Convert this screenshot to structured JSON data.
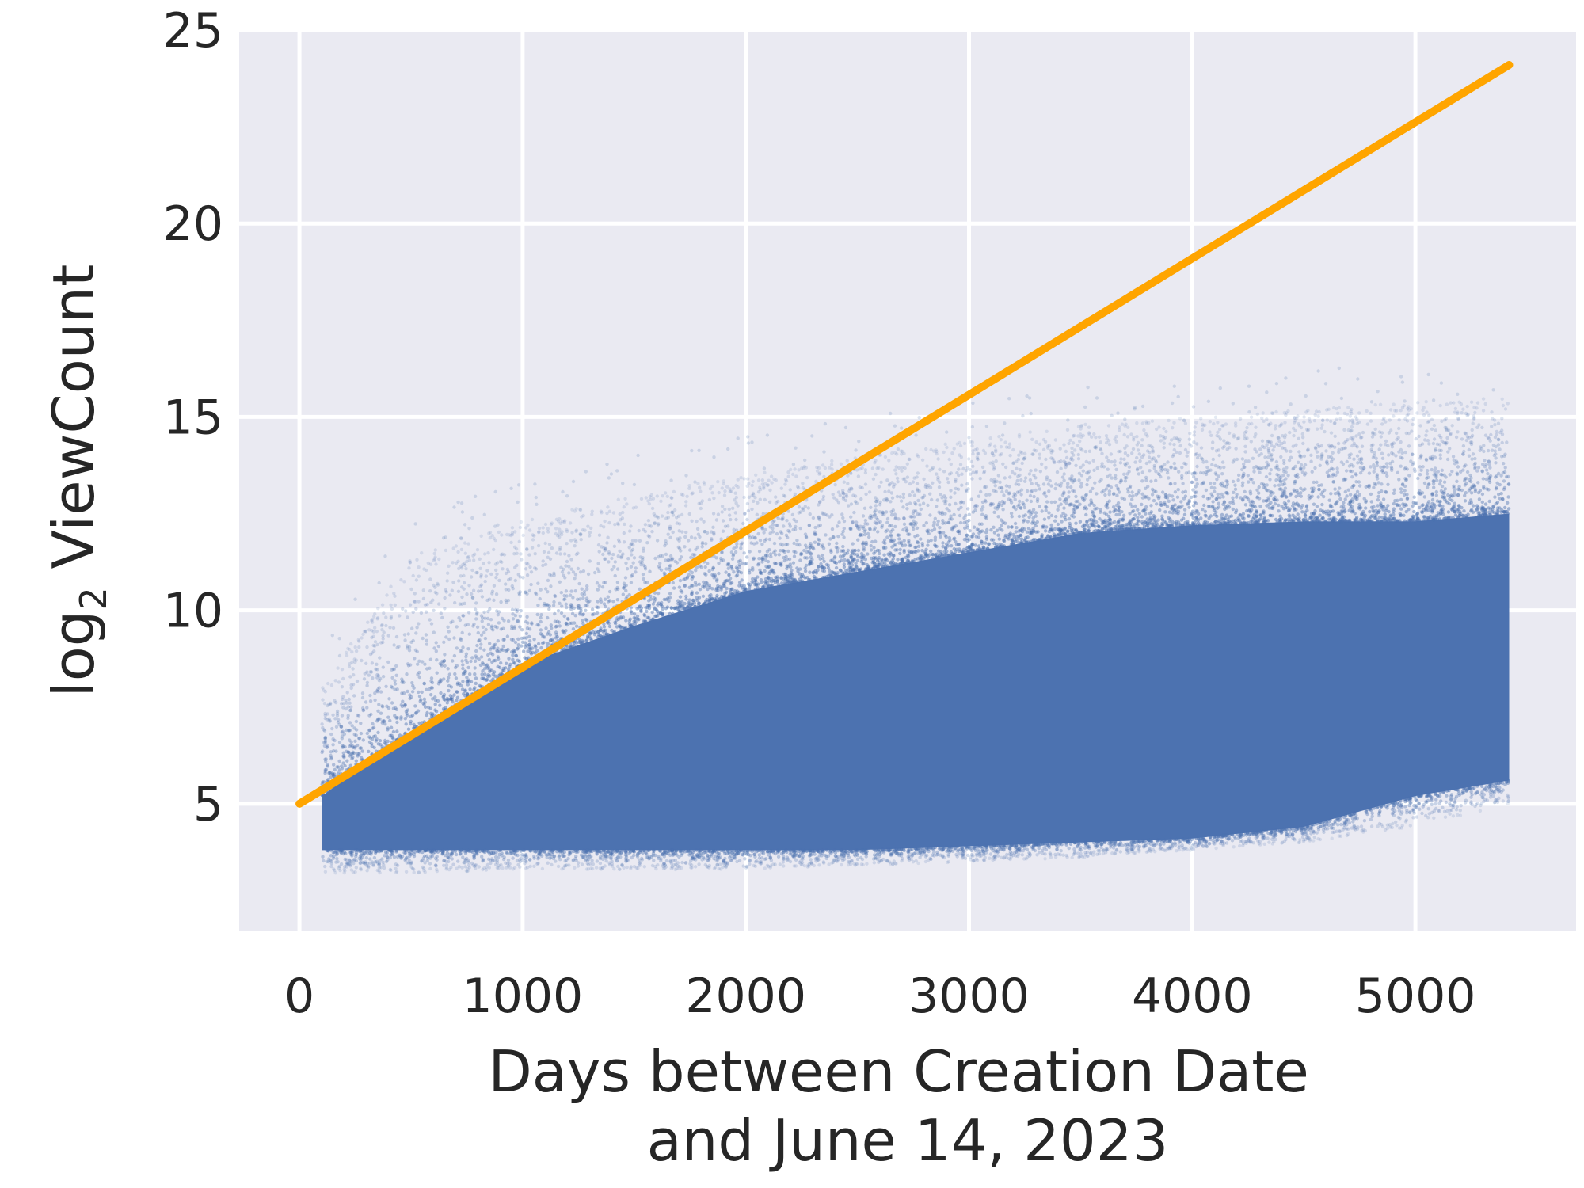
{
  "chart_data": {
    "type": "scatter",
    "xlabel_lines": [
      "Days between Creation Date",
      "and June 14, 2023"
    ],
    "ylabel": {
      "base": "log",
      "sub": "2",
      "rest": " ViewCount"
    },
    "xlim": [
      -270,
      5720
    ],
    "ylim": [
      1.7,
      25
    ],
    "x_ticks": [
      0,
      1000,
      2000,
      3000,
      4000,
      5000
    ],
    "y_ticks": [
      5,
      10,
      15,
      20,
      25
    ],
    "x_tick_labels": [
      "0",
      "1000",
      "2000",
      "3000",
      "4000",
      "5000"
    ],
    "y_tick_labels": [
      "5",
      "10",
      "15",
      "20",
      "25"
    ],
    "grid": true,
    "background": "#eaeaf2",
    "series": [
      {
        "kind": "scatter-cloud",
        "color": "#4c72b0",
        "x_range": [
          100,
          5420
        ],
        "dense_band": [
          {
            "x": 100,
            "low": 3.8,
            "high": 5.2
          },
          {
            "x": 500,
            "low": 3.8,
            "high": 6.8
          },
          {
            "x": 1000,
            "low": 3.8,
            "high": 8.6
          },
          {
            "x": 1500,
            "low": 3.8,
            "high": 9.6
          },
          {
            "x": 2000,
            "low": 3.8,
            "high": 10.5
          },
          {
            "x": 2500,
            "low": 3.8,
            "high": 11.0
          },
          {
            "x": 3000,
            "low": 3.9,
            "high": 11.5
          },
          {
            "x": 3500,
            "low": 4.0,
            "high": 12.0
          },
          {
            "x": 4000,
            "low": 4.1,
            "high": 12.2
          },
          {
            "x": 4500,
            "low": 4.4,
            "high": 12.3
          },
          {
            "x": 5000,
            "low": 5.2,
            "high": 12.3
          },
          {
            "x": 5420,
            "low": 5.6,
            "high": 12.5
          }
        ],
        "outer_band": [
          {
            "x": 100,
            "low": 3.2,
            "high": 8.0
          },
          {
            "x": 500,
            "low": 3.2,
            "high": 11.5
          },
          {
            "x": 1000,
            "low": 3.3,
            "high": 12.3
          },
          {
            "x": 1500,
            "low": 3.3,
            "high": 13.0
          },
          {
            "x": 2000,
            "low": 3.3,
            "high": 13.5
          },
          {
            "x": 2500,
            "low": 3.4,
            "high": 14.0
          },
          {
            "x": 3000,
            "low": 3.5,
            "high": 14.4
          },
          {
            "x": 3500,
            "low": 3.6,
            "high": 14.8
          },
          {
            "x": 4000,
            "low": 3.8,
            "high": 15.0
          },
          {
            "x": 4500,
            "low": 4.0,
            "high": 15.2
          },
          {
            "x": 5000,
            "low": 4.4,
            "high": 15.4
          },
          {
            "x": 5420,
            "low": 5.0,
            "high": 15.5
          }
        ]
      },
      {
        "kind": "line",
        "color": "#ffa500",
        "x": [
          0,
          5420
        ],
        "y": [
          5.0,
          24.1
        ]
      }
    ]
  }
}
